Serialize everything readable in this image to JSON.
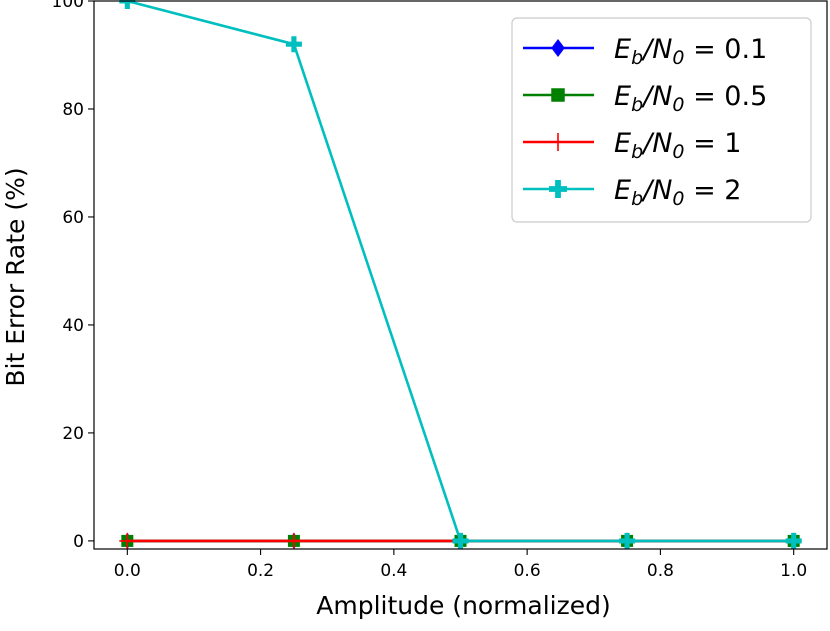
{
  "chart_data": {
    "type": "line",
    "title": "",
    "xlabel": "Amplitude (normalized)",
    "ylabel": "Bit Error Rate (%)",
    "x": [
      0.0,
      0.25,
      0.5,
      0.75,
      1.0
    ],
    "xlim": [
      -0.05,
      1.05
    ],
    "ylim": [
      -1.5,
      100
    ],
    "xticks": [
      0.0,
      0.2,
      0.4,
      0.6,
      0.8,
      1.0
    ],
    "xtick_labels": [
      "0.0",
      "0.2",
      "0.4",
      "0.6",
      "0.8",
      "1.0"
    ],
    "yticks": [
      0,
      20,
      40,
      60,
      80,
      100
    ],
    "ytick_labels": [
      "0",
      "20",
      "40",
      "60",
      "80",
      "100"
    ],
    "grid": false,
    "legend_position": "top-right",
    "series": [
      {
        "name": "E_b/N_0 = 0.1",
        "sub_base": "b",
        "sub_denom": "0",
        "value_text": "0.1",
        "color": "#0000ff",
        "marker": "diamond",
        "values": [
          0,
          0,
          0,
          0,
          0
        ]
      },
      {
        "name": "E_b/N_0 = 0.5",
        "sub_base": "b",
        "sub_denom": "0",
        "value_text": "0.5",
        "color": "#008000",
        "marker": "square",
        "values": [
          0,
          0,
          0,
          0,
          0
        ]
      },
      {
        "name": "E_b/N_0 = 1",
        "sub_base": "b",
        "sub_denom": "0",
        "value_text": "1",
        "color": "#ff0000",
        "marker": "plus-thin",
        "values": [
          0,
          0,
          0,
          0,
          0
        ]
      },
      {
        "name": "E_b/N_0 = 2",
        "sub_base": "b",
        "sub_denom": "0",
        "value_text": "2",
        "color": "#00bfbf",
        "marker": "plus-filled",
        "values": [
          100,
          92,
          0,
          0,
          0
        ]
      }
    ]
  }
}
